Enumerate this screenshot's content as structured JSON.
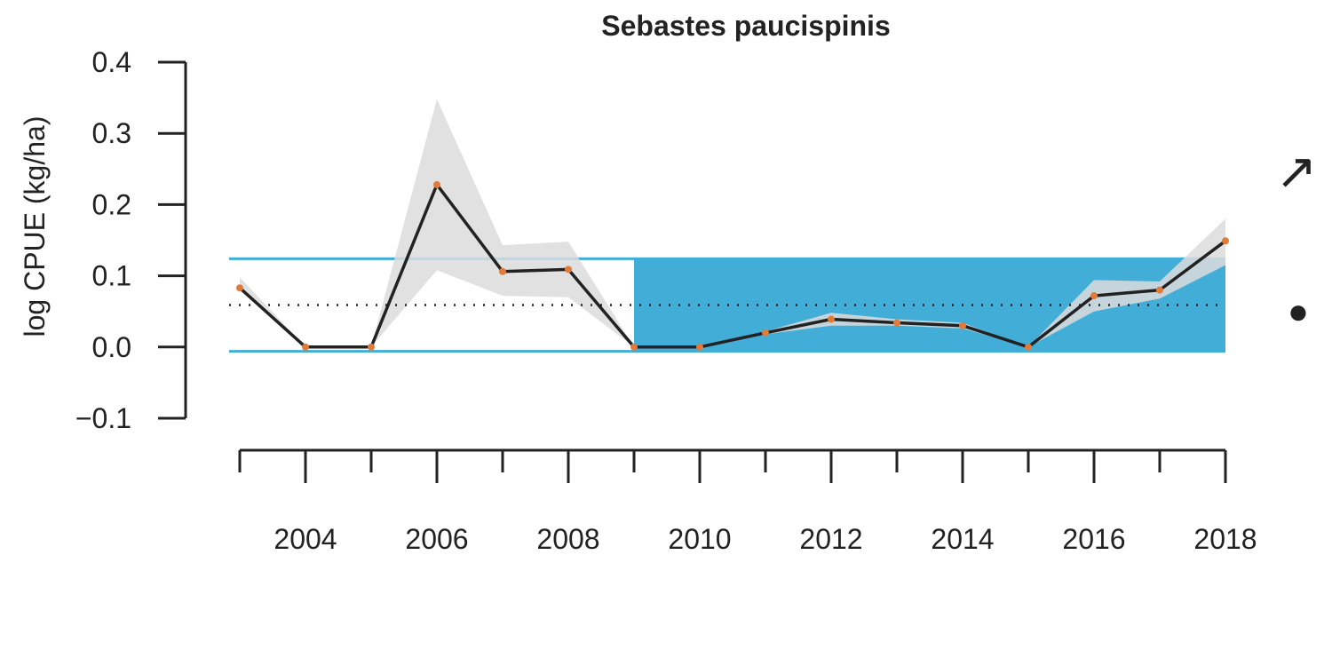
{
  "chart_data": {
    "type": "line",
    "title": "Sebastes paucispinis",
    "ylabel": "log CPUE (kg/ha)",
    "xlabel": "",
    "x": [
      2003,
      2004,
      2005,
      2006,
      2007,
      2008,
      2009,
      2010,
      2011,
      2012,
      2013,
      2014,
      2015,
      2016,
      2017,
      2018
    ],
    "series": [
      {
        "values": [
          0.083,
          0.0,
          0.0,
          0.228,
          0.106,
          0.109,
          0.0,
          0.0,
          0.02,
          0.039,
          0.034,
          0.03,
          0.0,
          0.072,
          0.08,
          0.149
        ],
        "lower": [
          0.083,
          0.0,
          0.0,
          0.108,
          0.072,
          0.07,
          0.0,
          0.0,
          0.018,
          0.03,
          0.03,
          0.026,
          0.0,
          0.05,
          0.068,
          0.115
        ],
        "upper": [
          0.098,
          0.0,
          0.0,
          0.348,
          0.143,
          0.148,
          0.0,
          0.0,
          0.022,
          0.048,
          0.039,
          0.034,
          0.0,
          0.094,
          0.092,
          0.18
        ]
      }
    ],
    "mean_line": 0.059,
    "reference_band": {
      "lower": -0.006,
      "upper": 0.124
    },
    "highlight_range": {
      "x_start": 2009,
      "x_end": 2018
    },
    "xticks": [
      2003,
      2004,
      2005,
      2006,
      2007,
      2008,
      2009,
      2010,
      2011,
      2012,
      2013,
      2014,
      2015,
      2016,
      2017,
      2018
    ],
    "xtick_labels": [
      2004,
      2006,
      2008,
      2010,
      2012,
      2014,
      2016,
      2018
    ],
    "yticks": [
      -0.1,
      0.0,
      0.1,
      0.2,
      0.3,
      0.4
    ],
    "ytick_labels": [
      "−0.1",
      "0.0",
      "0.1",
      "0.2",
      "0.3",
      "0.4"
    ],
    "ylim": [
      -0.1,
      0.4
    ],
    "xlim": [
      2003,
      2018
    ],
    "trend_symbol": "↗",
    "status_symbol": "●",
    "colors": {
      "line": "#222222",
      "points": "#E07B39",
      "ci_band": "#DCDCDC",
      "reference_lines": "#42AED8",
      "highlight_fill": "#42AED8",
      "mean_line": "#222222"
    },
    "grid": false,
    "legend": "none"
  }
}
